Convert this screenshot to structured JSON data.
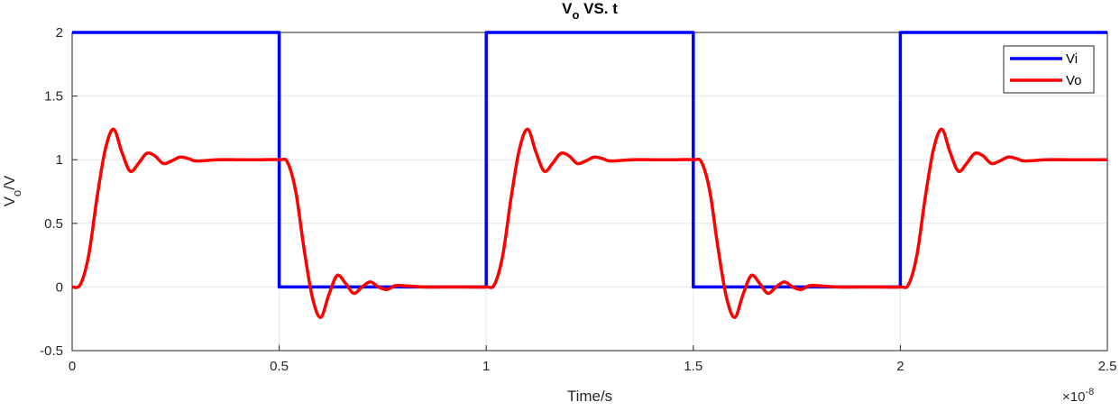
{
  "chart_data": {
    "type": "line",
    "title_main": "V",
    "title_sub": "o",
    "title_rest": " VS. t",
    "xlabel": "Time/s",
    "ylabel_main": "V",
    "ylabel_sub": "o",
    "ylabel_rest": "/V",
    "x_multiplier_base": "×10",
    "x_multiplier_exp": "-8",
    "xlim": [
      0,
      2.5
    ],
    "ylim": [
      -0.5,
      2
    ],
    "xticks": [
      0,
      0.5,
      1,
      1.5,
      2,
      2.5
    ],
    "xtick_labels": [
      "0",
      "0.5",
      "1",
      "1.5",
      "2",
      "2.5"
    ],
    "yticks": [
      -0.5,
      0,
      0.5,
      1,
      1.5,
      2
    ],
    "ytick_labels": [
      "-0.5",
      "0",
      "0.5",
      "1",
      "1.5",
      "2"
    ],
    "grid": true,
    "legend_position": "top-right",
    "series": [
      {
        "name": "Vi",
        "color": "#0000ff",
        "x": [
          0,
          0.5,
          0.5,
          1.0,
          1.0,
          1.5,
          1.5,
          2.0,
          2.0,
          2.5
        ],
        "y": [
          2,
          2,
          0,
          0,
          2,
          2,
          0,
          0,
          2,
          2
        ]
      },
      {
        "name": "Vo",
        "color": "#ff0000",
        "x": [
          0,
          0.02,
          0.04,
          0.06,
          0.08,
          0.1,
          0.12,
          0.14,
          0.16,
          0.18,
          0.2,
          0.22,
          0.24,
          0.26,
          0.28,
          0.3,
          0.35,
          0.4,
          0.45,
          0.5,
          0.52,
          0.54,
          0.56,
          0.58,
          0.6,
          0.62,
          0.64,
          0.66,
          0.68,
          0.7,
          0.72,
          0.74,
          0.76,
          0.78,
          0.8,
          0.85,
          0.9,
          0.95,
          1.0,
          1.02,
          1.04,
          1.06,
          1.08,
          1.1,
          1.12,
          1.14,
          1.16,
          1.18,
          1.2,
          1.22,
          1.24,
          1.26,
          1.28,
          1.3,
          1.35,
          1.4,
          1.45,
          1.5,
          1.52,
          1.54,
          1.56,
          1.58,
          1.6,
          1.62,
          1.64,
          1.66,
          1.68,
          1.7,
          1.72,
          1.74,
          1.76,
          1.78,
          1.8,
          1.85,
          1.9,
          1.95,
          2.0,
          2.02,
          2.04,
          2.06,
          2.08,
          2.1,
          2.12,
          2.14,
          2.16,
          2.18,
          2.2,
          2.22,
          2.24,
          2.26,
          2.28,
          2.3,
          2.35,
          2.4,
          2.45,
          2.5
        ],
        "y": [
          0.0,
          0.02,
          0.25,
          0.7,
          1.08,
          1.24,
          1.06,
          0.91,
          0.97,
          1.05,
          1.03,
          0.97,
          0.99,
          1.02,
          1.01,
          0.99,
          1.0,
          1.0,
          1.0,
          1.0,
          0.98,
          0.75,
          0.3,
          -0.08,
          -0.24,
          -0.06,
          0.09,
          0.03,
          -0.05,
          0.0,
          0.04,
          0.0,
          -0.02,
          0.01,
          0.01,
          0.0,
          0.0,
          0.0,
          0.0,
          0.02,
          0.25,
          0.7,
          1.08,
          1.24,
          1.06,
          0.91,
          0.97,
          1.05,
          1.03,
          0.97,
          0.99,
          1.02,
          1.01,
          0.99,
          1.0,
          1.0,
          1.0,
          1.0,
          0.98,
          0.75,
          0.3,
          -0.08,
          -0.24,
          -0.06,
          0.09,
          0.03,
          -0.05,
          0.0,
          0.04,
          0.0,
          -0.02,
          0.01,
          0.01,
          0.0,
          0.0,
          0.0,
          0.0,
          0.02,
          0.25,
          0.7,
          1.08,
          1.24,
          1.06,
          0.91,
          0.97,
          1.05,
          1.03,
          0.97,
          0.99,
          1.02,
          1.01,
          0.99,
          1.0,
          1.0,
          1.0,
          1.0
        ]
      }
    ]
  }
}
